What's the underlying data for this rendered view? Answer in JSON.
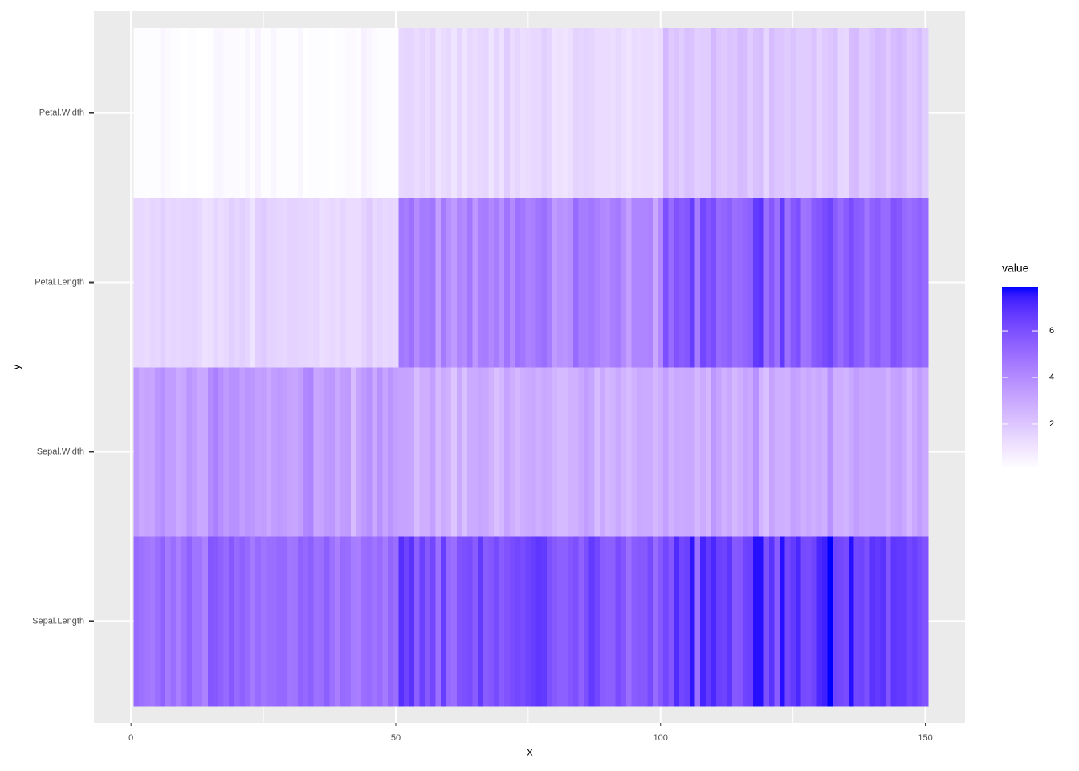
{
  "chart_data": {
    "type": "heatmap",
    "x_label": "x",
    "y_label": "y",
    "legend_title": "value",
    "xlim": [
      -7,
      157.5
    ],
    "xticks": [
      0,
      50,
      100,
      150
    ],
    "x_minor_ticks": [
      25,
      75,
      125
    ],
    "grid": true,
    "low_color": "#ffffff",
    "high_color": "#0000ff",
    "color_lim": [
      0.1,
      7.9
    ],
    "legend_ticks": [
      2,
      4,
      6
    ],
    "x": [
      1,
      2,
      3,
      4,
      5,
      6,
      7,
      8,
      9,
      10,
      11,
      12,
      13,
      14,
      15,
      16,
      17,
      18,
      19,
      20,
      21,
      22,
      23,
      24,
      25,
      26,
      27,
      28,
      29,
      30,
      31,
      32,
      33,
      34,
      35,
      36,
      37,
      38,
      39,
      40,
      41,
      42,
      43,
      44,
      45,
      46,
      47,
      48,
      49,
      50,
      51,
      52,
      53,
      54,
      55,
      56,
      57,
      58,
      59,
      60,
      61,
      62,
      63,
      64,
      65,
      66,
      67,
      68,
      69,
      70,
      71,
      72,
      73,
      74,
      75,
      76,
      77,
      78,
      79,
      80,
      81,
      82,
      83,
      84,
      85,
      86,
      87,
      88,
      89,
      90,
      91,
      92,
      93,
      94,
      95,
      96,
      97,
      98,
      99,
      100,
      101,
      102,
      103,
      104,
      105,
      106,
      107,
      108,
      109,
      110,
      111,
      112,
      113,
      114,
      115,
      116,
      117,
      118,
      119,
      120,
      121,
      122,
      123,
      124,
      125,
      126,
      127,
      128,
      129,
      130,
      131,
      132,
      133,
      134,
      135,
      136,
      137,
      138,
      139,
      140,
      141,
      142,
      143,
      144,
      145,
      146,
      147,
      148,
      149,
      150
    ],
    "rows": [
      {
        "name": "Sepal.Length",
        "values": [
          5.1,
          4.9,
          4.7,
          4.6,
          5.0,
          5.4,
          4.6,
          5.0,
          4.4,
          4.9,
          5.4,
          4.8,
          4.8,
          4.3,
          5.8,
          5.7,
          5.4,
          5.1,
          5.7,
          5.1,
          5.4,
          5.1,
          4.6,
          5.1,
          4.8,
          5.0,
          5.0,
          5.2,
          5.2,
          4.7,
          4.8,
          5.4,
          5.2,
          5.5,
          4.9,
          5.0,
          5.5,
          4.9,
          4.4,
          5.1,
          5.0,
          4.5,
          4.4,
          5.0,
          5.1,
          4.8,
          5.1,
          4.6,
          5.3,
          5.0,
          7.0,
          6.4,
          6.9,
          5.5,
          6.5,
          5.7,
          6.3,
          4.9,
          6.6,
          5.2,
          5.0,
          5.9,
          6.0,
          6.1,
          5.6,
          6.7,
          5.6,
          5.8,
          6.2,
          5.6,
          5.9,
          6.1,
          6.3,
          6.1,
          6.4,
          6.6,
          6.8,
          6.7,
          6.0,
          5.7,
          5.5,
          5.5,
          5.8,
          6.0,
          5.4,
          6.0,
          6.7,
          6.3,
          5.6,
          5.5,
          5.5,
          6.1,
          5.8,
          5.0,
          5.6,
          5.7,
          5.7,
          6.2,
          5.1,
          5.7,
          6.3,
          5.8,
          7.1,
          6.3,
          6.5,
          7.6,
          4.9,
          7.3,
          6.7,
          7.2,
          6.5,
          6.4,
          6.8,
          5.7,
          5.8,
          6.4,
          6.5,
          7.7,
          7.7,
          6.0,
          6.9,
          5.6,
          7.7,
          6.3,
          6.7,
          7.2,
          6.2,
          6.1,
          6.4,
          7.2,
          7.4,
          7.9,
          6.4,
          6.3,
          6.1,
          7.7,
          6.3,
          6.4,
          6.0,
          6.9,
          6.7,
          6.9,
          5.8,
          6.8,
          6.7,
          6.7,
          6.3,
          6.5,
          6.2,
          5.9
        ]
      },
      {
        "name": "Sepal.Width",
        "values": [
          3.5,
          3.0,
          3.2,
          3.1,
          3.6,
          3.9,
          3.4,
          3.4,
          2.9,
          3.1,
          3.7,
          3.4,
          3.0,
          3.0,
          4.0,
          4.4,
          3.9,
          3.5,
          3.8,
          3.8,
          3.4,
          3.7,
          3.6,
          3.3,
          3.4,
          3.0,
          3.4,
          3.5,
          3.4,
          3.2,
          3.1,
          3.4,
          4.1,
          4.2,
          3.1,
          3.2,
          3.5,
          3.6,
          3.0,
          3.4,
          3.5,
          2.3,
          3.2,
          3.5,
          3.8,
          3.0,
          3.8,
          3.2,
          3.7,
          3.3,
          3.2,
          3.2,
          3.1,
          2.3,
          2.8,
          2.8,
          3.3,
          2.4,
          2.9,
          2.7,
          2.0,
          3.0,
          2.2,
          2.9,
          2.9,
          3.1,
          3.0,
          2.7,
          2.2,
          2.5,
          3.2,
          2.8,
          2.5,
          2.8,
          2.9,
          3.0,
          2.8,
          3.0,
          2.9,
          2.6,
          2.4,
          2.4,
          2.7,
          2.7,
          3.0,
          3.4,
          3.1,
          2.3,
          3.0,
          2.5,
          2.6,
          3.0,
          2.6,
          2.3,
          2.7,
          3.0,
          2.9,
          2.9,
          2.5,
          2.8,
          3.3,
          2.7,
          3.0,
          2.9,
          3.0,
          3.0,
          2.5,
          2.9,
          2.5,
          3.6,
          3.2,
          2.7,
          3.0,
          2.5,
          2.8,
          3.2,
          3.0,
          3.8,
          2.6,
          2.2,
          3.2,
          2.8,
          2.8,
          2.7,
          3.3,
          3.2,
          2.8,
          3.0,
          2.8,
          3.0,
          2.8,
          3.8,
          2.8,
          2.8,
          2.6,
          3.0,
          3.4,
          3.1,
          3.0,
          3.1,
          3.1,
          3.1,
          2.7,
          3.2,
          3.3,
          3.0,
          2.5,
          3.0,
          3.4,
          3.0
        ]
      },
      {
        "name": "Petal.Length",
        "values": [
          1.4,
          1.4,
          1.3,
          1.5,
          1.4,
          1.7,
          1.4,
          1.5,
          1.4,
          1.5,
          1.5,
          1.6,
          1.4,
          1.1,
          1.2,
          1.5,
          1.3,
          1.4,
          1.7,
          1.5,
          1.7,
          1.5,
          1.0,
          1.7,
          1.9,
          1.6,
          1.6,
          1.5,
          1.4,
          1.6,
          1.6,
          1.5,
          1.5,
          1.4,
          1.5,
          1.2,
          1.3,
          1.4,
          1.3,
          1.5,
          1.3,
          1.3,
          1.3,
          1.6,
          1.9,
          1.4,
          1.6,
          1.4,
          1.5,
          1.4,
          4.7,
          4.5,
          4.9,
          4.0,
          4.6,
          4.5,
          4.7,
          3.3,
          4.6,
          3.9,
          3.5,
          4.2,
          4.0,
          4.7,
          3.6,
          4.4,
          4.5,
          4.1,
          4.5,
          3.9,
          4.8,
          4.0,
          4.9,
          4.7,
          4.3,
          4.4,
          4.8,
          5.0,
          4.5,
          3.5,
          3.8,
          3.7,
          3.9,
          5.1,
          4.5,
          4.5,
          4.7,
          4.4,
          4.1,
          4.0,
          4.4,
          4.6,
          4.0,
          3.3,
          4.2,
          4.2,
          4.2,
          4.3,
          3.0,
          4.1,
          6.0,
          5.1,
          5.9,
          5.6,
          5.8,
          6.6,
          4.5,
          6.3,
          5.8,
          6.1,
          5.1,
          5.3,
          5.5,
          5.0,
          5.1,
          5.3,
          5.5,
          6.7,
          6.9,
          5.0,
          5.7,
          4.9,
          6.7,
          4.9,
          5.7,
          6.0,
          4.8,
          4.9,
          5.6,
          5.8,
          6.1,
          6.4,
          5.6,
          5.1,
          5.6,
          6.1,
          5.6,
          5.5,
          4.8,
          5.4,
          5.6,
          5.1,
          5.1,
          5.9,
          5.7,
          5.2,
          5.0,
          5.2,
          5.4,
          5.1
        ]
      },
      {
        "name": "Petal.Width",
        "values": [
          0.2,
          0.2,
          0.2,
          0.2,
          0.2,
          0.4,
          0.3,
          0.2,
          0.2,
          0.1,
          0.2,
          0.2,
          0.1,
          0.1,
          0.2,
          0.4,
          0.4,
          0.3,
          0.3,
          0.3,
          0.2,
          0.4,
          0.2,
          0.5,
          0.2,
          0.2,
          0.4,
          0.2,
          0.2,
          0.2,
          0.2,
          0.4,
          0.1,
          0.2,
          0.2,
          0.2,
          0.2,
          0.1,
          0.2,
          0.2,
          0.3,
          0.3,
          0.2,
          0.6,
          0.4,
          0.3,
          0.2,
          0.2,
          0.2,
          0.2,
          1.4,
          1.5,
          1.5,
          1.3,
          1.5,
          1.3,
          1.6,
          1.0,
          1.3,
          1.4,
          1.0,
          1.5,
          1.0,
          1.4,
          1.3,
          1.4,
          1.5,
          1.0,
          1.5,
          1.1,
          1.8,
          1.3,
          1.5,
          1.2,
          1.3,
          1.4,
          1.4,
          1.7,
          1.5,
          1.0,
          1.1,
          1.0,
          1.2,
          1.6,
          1.5,
          1.6,
          1.5,
          1.3,
          1.3,
          1.3,
          1.2,
          1.4,
          1.2,
          1.0,
          1.3,
          1.2,
          1.3,
          1.3,
          1.1,
          1.3,
          2.5,
          1.9,
          2.1,
          1.8,
          2.2,
          2.1,
          1.7,
          1.8,
          1.8,
          2.5,
          2.0,
          1.9,
          2.1,
          2.0,
          2.4,
          2.3,
          1.8,
          2.2,
          2.3,
          1.5,
          2.3,
          2.0,
          2.0,
          1.8,
          2.1,
          1.8,
          1.8,
          1.8,
          2.1,
          1.6,
          1.9,
          2.0,
          2.2,
          1.5,
          1.4,
          2.3,
          2.4,
          1.8,
          1.8,
          2.1,
          2.4,
          2.3,
          1.9,
          2.3,
          2.5,
          2.3,
          1.9,
          2.0,
          2.3,
          1.8
        ]
      }
    ]
  }
}
